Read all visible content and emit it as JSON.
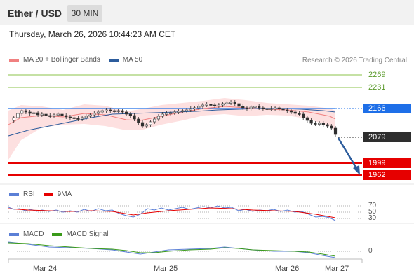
{
  "header": {
    "pair_title": "Ether / USD",
    "timeframe_label": "30 MIN"
  },
  "datetime": "Thursday, March 26, 2026 10:44:23 AM CET",
  "main_legend": {
    "items": [
      {
        "label": "MA 20 + Bollinger Bands",
        "color": "#f08080"
      },
      {
        "label": "MA 50",
        "color": "#2c5c9c"
      }
    ],
    "copyright": "Research © 2026 Trading Central"
  },
  "levels": [
    {
      "label": "2269",
      "kind": "resistance",
      "color": "#8bc34a"
    },
    {
      "label": "2231",
      "kind": "resistance",
      "color": "#8bc34a"
    },
    {
      "label": "2166",
      "kind": "pivot",
      "color": "#1e6fe8"
    },
    {
      "label": "2079",
      "kind": "last-price",
      "color": "#2e2e2e"
    },
    {
      "label": "1999",
      "kind": "support",
      "color": "#e60000"
    },
    {
      "label": "1962",
      "kind": "support",
      "color": "#e60000"
    }
  ],
  "rsi_legend": {
    "items": [
      {
        "label": "RSI",
        "color": "#5b7fd6"
      },
      {
        "label": "9MA",
        "color": "#e60000"
      }
    ],
    "levels": [
      "70",
      "50",
      "30"
    ]
  },
  "macd_legend": {
    "items": [
      {
        "label": "MACD",
        "color": "#5b7fd6"
      },
      {
        "label": "MACD Signal",
        "color": "#3a9a1a"
      }
    ],
    "zero_label": "0"
  },
  "x_axis": [
    "Mar 24",
    "Mar 25",
    "Mar 26",
    "Mar 27"
  ],
  "colors": {
    "up_candle": "#ffffff",
    "down_candle": "#2e2e2e",
    "band_fill": "#fde0e0",
    "arrow": "#2c5c9c"
  }
}
